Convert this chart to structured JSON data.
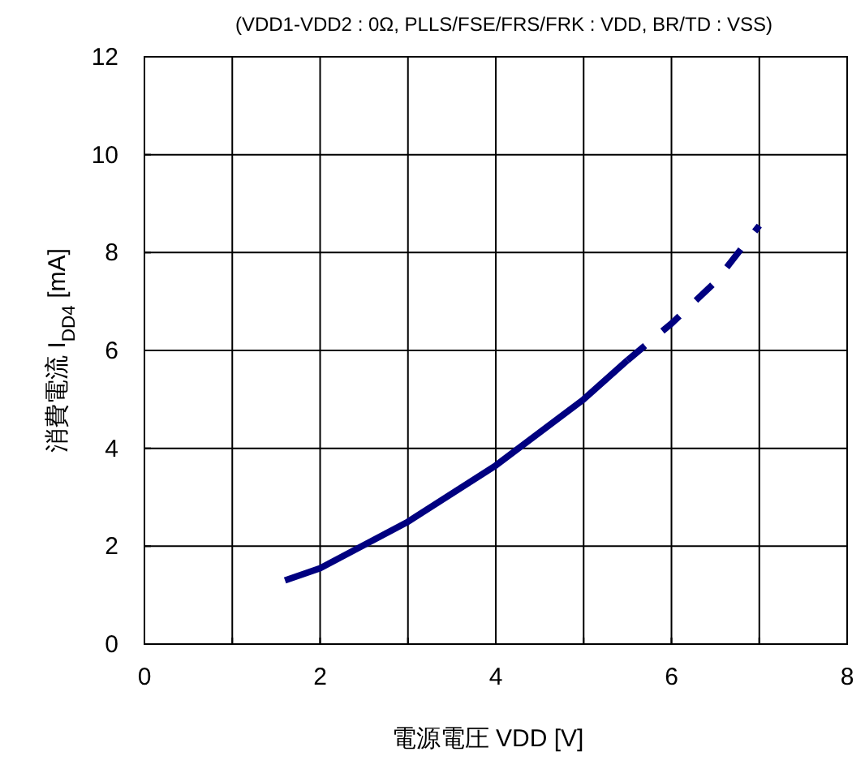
{
  "chart_data": {
    "type": "line",
    "title": "(VDD1-VDD2 : 0Ω, PLLS/FSE/FRS/FRK : VDD, BR/TD : VSS)",
    "xlabel": "電源電圧 VDD [V]",
    "ylabel": "消費電流 I$_{DD4}$ [mA]",
    "xlim": [
      0,
      8
    ],
    "ylim": [
      0,
      12
    ],
    "xticks": [
      0,
      {
        "value": 1,
        "label": null
      },
      2,
      {
        "value": 3,
        "label": null
      },
      4,
      {
        "value": 5,
        "label": null
      },
      6,
      {
        "value": 7,
        "label": null
      },
      8
    ],
    "yticks": [
      0,
      2,
      4,
      6,
      8,
      10,
      12
    ],
    "grid": true,
    "marker": "none",
    "series": [
      {
        "color": "#000080",
        "line_style": "solid",
        "x": [
          1.6,
          2.0,
          3.0,
          4.0,
          5.0,
          5.5
        ],
        "values": [
          1.3,
          1.55,
          2.5,
          3.65,
          5.0,
          5.8
        ]
      },
      {
        "color": "#000080",
        "line_style": "dashed",
        "x": [
          5.5,
          6.0,
          6.5,
          7.0
        ],
        "values": [
          5.8,
          6.55,
          7.4,
          8.55
        ]
      }
    ]
  }
}
